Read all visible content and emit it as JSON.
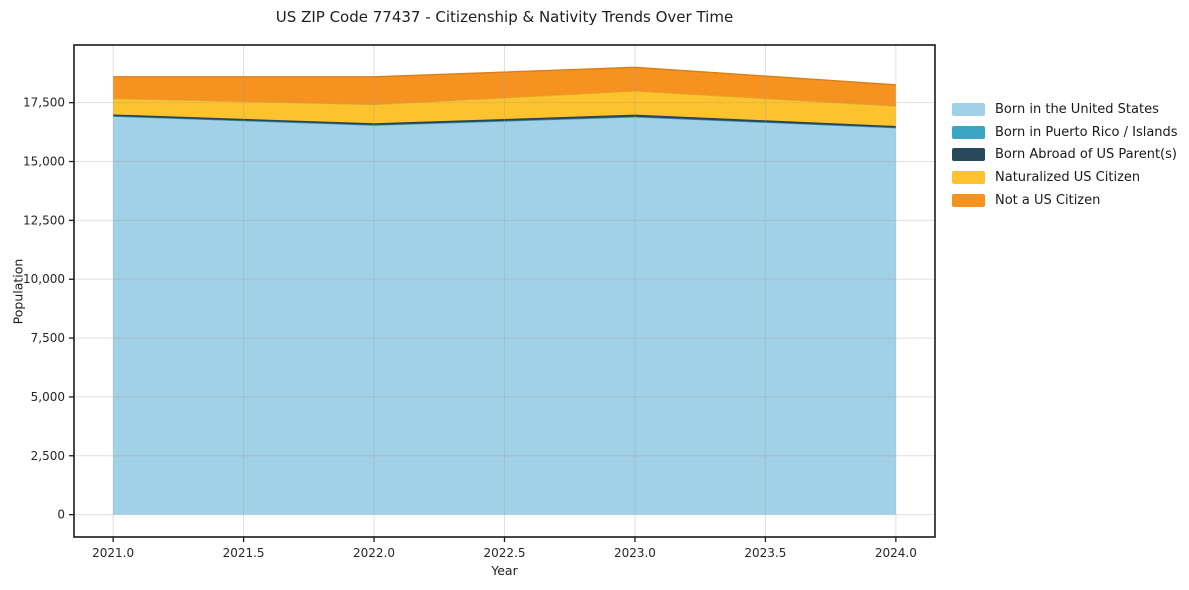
{
  "chart_data": {
    "type": "area",
    "stacked": true,
    "title": "US ZIP Code 77437 - Citizenship & Nativity Trends Over Time",
    "xlabel": "Year",
    "ylabel": "Population",
    "x": [
      2021,
      2022,
      2023,
      2024
    ],
    "series": [
      {
        "name": "Born in the United States",
        "color": "#a0d1e7",
        "values": [
          16930,
          16550,
          16900,
          16440
        ]
      },
      {
        "name": "Born in Puerto Rico / Islands",
        "color": "#3da4c1",
        "values": [
          0,
          0,
          0,
          0
        ]
      },
      {
        "name": "Born Abroad of US Parent(s)",
        "color": "#28495c",
        "values": [
          70,
          75,
          90,
          70
        ]
      },
      {
        "name": "Naturalized US Citizen",
        "color": "#fdc32f",
        "values": [
          680,
          800,
          1010,
          850
        ]
      },
      {
        "name": "Not a US Citizen",
        "color": "#f6921f",
        "values": [
          920,
          1175,
          1000,
          900
        ]
      }
    ],
    "totals_by_year": [
      18600,
      18600,
      19000,
      18260
    ],
    "xticks": {
      "values": [
        2021.0,
        2021.5,
        2022.0,
        2022.5,
        2023.0,
        2023.5,
        2024.0
      ],
      "labels": [
        "2021.0",
        "2021.5",
        "2022.0",
        "2022.5",
        "2023.0",
        "2023.5",
        "2024.0"
      ]
    },
    "yticks": {
      "values": [
        0,
        2500,
        5000,
        7500,
        10000,
        12500,
        15000,
        17500
      ],
      "labels": [
        "0",
        "2,500",
        "5,000",
        "7,500",
        "10,000",
        "12,500",
        "15,000",
        "17,500"
      ]
    },
    "xlim": [
      2020.85,
      2024.15
    ],
    "ylim": [
      -950,
      19950
    ],
    "grid": true,
    "legend_position": "right-of-plot"
  }
}
